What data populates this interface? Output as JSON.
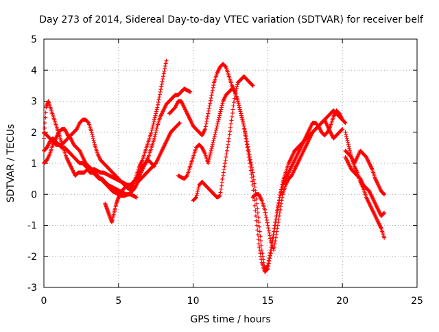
{
  "chart_data": {
    "type": "scatter",
    "title": "Day 273 of 2014, Sidereal Day-to-day VTEC variation (SDTVAR) for receiver belf",
    "xlabel": "GPS time / hours",
    "ylabel": "SDTVAR / TECUs",
    "xlim": [
      0,
      25
    ],
    "ylim": [
      -3,
      5
    ],
    "x_ticks": [
      "0",
      "5",
      "10",
      "15",
      "20",
      "25"
    ],
    "y_ticks": [
      "-3",
      "-2",
      "-1",
      "0",
      "1",
      "2",
      "3",
      "4",
      "5"
    ],
    "grid": true,
    "marker": "+",
    "color": "#ff0000",
    "series": [
      {
        "x": [
          0.0,
          0.15,
          0.3,
          0.5,
          0.7,
          0.9,
          1.1,
          1.3,
          1.5,
          1.7,
          1.9,
          2.1,
          2.3,
          2.5,
          2.7,
          2.9,
          3.1,
          3.3,
          3.5,
          3.7,
          3.9,
          4.1,
          4.3,
          4.5,
          4.7,
          4.9,
          5.1,
          5.3,
          5.5,
          5.7,
          5.9,
          6.1,
          6.3,
          6.5,
          6.7,
          6.9,
          7.1,
          7.3,
          7.5,
          7.7,
          7.9,
          8.1,
          8.3,
          8.5,
          8.7,
          8.9,
          9.1
        ],
        "y": [
          1.8,
          2.8,
          3.0,
          2.7,
          2.4,
          2.1,
          1.8,
          1.5,
          1.2,
          1.0,
          0.8,
          0.6,
          0.7,
          0.7,
          0.7,
          0.8,
          0.7,
          0.7,
          0.6,
          0.5,
          0.5,
          0.4,
          0.3,
          0.25,
          0.2,
          0.15,
          0.1,
          0.05,
          0.0,
          0.0,
          0.1,
          0.2,
          0.4,
          0.5,
          0.6,
          0.7,
          0.8,
          0.9,
          1.0,
          1.2,
          1.4,
          1.6,
          1.8,
          2.0,
          2.1,
          2.2,
          2.3
        ]
      },
      {
        "x": [
          0.0,
          0.2,
          0.4,
          0.6,
          0.8,
          1.0,
          1.2,
          1.4,
          1.6,
          1.8,
          2.0,
          2.2,
          2.4,
          2.6,
          2.8,
          3.0,
          3.2,
          3.4,
          3.6,
          3.8,
          4.0,
          4.2,
          4.4,
          4.6,
          4.8,
          5.0,
          5.2,
          5.4,
          5.6,
          5.8,
          6.0,
          6.2
        ],
        "y": [
          1.0,
          1.1,
          1.3,
          1.6,
          1.8,
          2.0,
          2.1,
          2.1,
          1.9,
          1.8,
          1.6,
          1.5,
          1.4,
          1.2,
          1.0,
          0.9,
          0.8,
          0.7,
          0.6,
          0.5,
          0.4,
          0.3,
          0.2,
          0.1,
          0.05,
          0.0,
          -0.05,
          -0.05,
          0.0,
          0.0,
          -0.05,
          -0.1
        ]
      },
      {
        "x": [
          0.0,
          0.2,
          0.4,
          0.6,
          0.8,
          1.0,
          1.2,
          1.4,
          1.6,
          1.8,
          2.0,
          2.2,
          2.4,
          2.6,
          2.8,
          3.0,
          3.2,
          3.4,
          3.6,
          3.8,
          4.0,
          4.2,
          4.4,
          4.6,
          4.8,
          5.0,
          5.2,
          5.4,
          5.6,
          5.8,
          6.0,
          6.2,
          6.4,
          6.6,
          6.8,
          7.0,
          7.2,
          7.4,
          7.6,
          7.8,
          8.0,
          8.2
        ],
        "y": [
          1.4,
          1.5,
          1.7,
          1.8,
          1.7,
          1.6,
          1.6,
          1.7,
          1.8,
          1.9,
          2.0,
          2.1,
          2.3,
          2.4,
          2.4,
          2.3,
          2.0,
          1.6,
          1.3,
          1.1,
          1.0,
          0.9,
          0.8,
          0.7,
          0.6,
          0.5,
          0.4,
          0.3,
          0.2,
          0.15,
          0.3,
          0.6,
          0.9,
          1.1,
          1.4,
          1.7,
          2.0,
          2.4,
          2.8,
          3.3,
          3.8,
          4.3
        ]
      },
      {
        "x": [
          0.0,
          0.2,
          0.4,
          0.6,
          0.8,
          1.0,
          1.2,
          1.4,
          1.6,
          1.8,
          2.0,
          2.2,
          2.4,
          2.6,
          2.8,
          3.0,
          3.2,
          3.4,
          3.6,
          3.8,
          4.0,
          4.2,
          4.4,
          4.6,
          4.8,
          5.0,
          5.2,
          5.4,
          5.6,
          5.8,
          6.0,
          6.2,
          6.4,
          6.6,
          6.8,
          7.0,
          7.2,
          7.4,
          7.6,
          7.8,
          8.0,
          8.2,
          8.4,
          8.6,
          8.8,
          9.0,
          9.2,
          9.4,
          9.6,
          9.8
        ],
        "y": [
          2.0,
          1.9,
          1.8,
          1.7,
          1.6,
          1.6,
          1.5,
          1.5,
          1.4,
          1.3,
          1.2,
          1.1,
          1.0,
          1.0,
          0.9,
          0.9,
          0.8,
          0.8,
          0.75,
          0.7,
          0.7,
          0.65,
          0.6,
          0.55,
          0.5,
          0.45,
          0.4,
          0.35,
          0.3,
          0.3,
          0.4,
          0.5,
          0.6,
          0.8,
          1.0,
          1.2,
          1.5,
          1.8,
          2.2,
          2.5,
          2.7,
          2.9,
          3.0,
          3.1,
          3.2,
          3.2,
          3.3,
          3.4,
          3.35,
          3.3
        ]
      },
      {
        "x": [
          4.1,
          4.25,
          4.4,
          4.55,
          4.7,
          4.85,
          5.0,
          5.2,
          5.4,
          5.6,
          5.8,
          6.0,
          6.2,
          6.4,
          6.6,
          6.8,
          7.0,
          7.2,
          7.4
        ],
        "y": [
          -0.3,
          -0.5,
          -0.7,
          -0.9,
          -0.6,
          -0.3,
          -0.1,
          0.1,
          0.2,
          0.3,
          0.3,
          0.4,
          0.5,
          0.7,
          0.9,
          1.0,
          1.1,
          1.0,
          0.9
        ]
      },
      {
        "x": [
          8.4,
          8.6,
          8.8,
          9.0,
          9.2,
          9.4,
          9.6,
          9.8,
          10.0,
          10.2,
          10.4,
          10.6,
          10.8,
          11.0,
          11.2,
          11.4,
          11.6,
          11.8,
          12.0,
          12.2,
          12.4,
          12.6,
          12.8,
          13.0,
          13.2,
          13.4,
          13.6,
          13.8,
          14.0,
          14.2,
          14.4,
          14.6,
          14.8,
          15.0,
          15.2,
          15.4,
          15.6,
          15.8,
          16.0,
          16.2,
          16.4,
          16.6,
          16.8,
          17.0,
          17.2,
          17.4,
          17.6,
          17.8,
          18.0,
          18.2,
          18.4,
          18.6,
          18.8,
          19.0,
          19.2,
          19.4,
          19.6,
          19.8,
          20.0,
          20.2
        ],
        "y": [
          2.6,
          2.7,
          2.8,
          3.0,
          3.0,
          2.8,
          2.6,
          2.4,
          2.2,
          2.1,
          2.0,
          1.9,
          2.1,
          2.6,
          3.1,
          3.6,
          3.9,
          4.1,
          4.2,
          4.1,
          3.8,
          3.5,
          3.3,
          3.0,
          2.6,
          2.2,
          1.7,
          1.2,
          0.7,
          0.0,
          -0.9,
          -1.8,
          -2.4,
          -2.3,
          -1.8,
          -1.2,
          -0.6,
          -0.1,
          0.4,
          0.7,
          1.0,
          1.2,
          1.4,
          1.5,
          1.6,
          1.7,
          1.8,
          1.9,
          2.0,
          2.1,
          2.2,
          2.3,
          2.4,
          2.5,
          2.6,
          2.7,
          2.6,
          2.5,
          2.4,
          2.3
        ]
      },
      {
        "x": [
          9.0,
          9.2,
          9.4,
          9.6,
          9.8,
          10.0,
          10.2,
          10.4,
          10.6,
          10.8,
          11.0,
          11.2,
          11.4,
          11.6,
          11.8,
          12.0,
          12.2,
          12.4,
          12.6,
          12.8,
          13.0,
          13.2,
          13.4,
          13.6,
          13.8,
          14.0,
          14.2,
          14.4,
          14.6,
          14.8,
          15.0,
          15.2,
          15.4,
          15.6,
          15.8,
          16.0,
          16.2,
          16.4,
          16.6,
          16.8,
          17.0,
          17.2,
          17.4,
          17.6,
          17.8,
          18.0,
          18.2,
          18.4,
          18.6,
          18.8,
          19.0,
          19.2,
          19.4,
          19.6,
          19.8,
          20.0
        ],
        "y": [
          0.6,
          0.55,
          0.5,
          0.6,
          0.9,
          1.2,
          1.5,
          1.6,
          1.5,
          1.3,
          1.0,
          1.4,
          1.8,
          2.2,
          2.6,
          3.0,
          3.2,
          3.3,
          3.4,
          3.3,
          3.0,
          2.6,
          2.2,
          1.6,
          1.0,
          0.3,
          -0.7,
          -1.6,
          -2.2,
          -2.5,
          -2.4,
          -1.9,
          -1.3,
          -0.7,
          -0.1,
          0.3,
          0.5,
          0.7,
          0.9,
          1.1,
          1.3,
          1.5,
          1.7,
          1.9,
          2.1,
          2.3,
          2.3,
          2.2,
          2.0,
          1.9,
          2.0,
          2.2,
          2.5,
          2.7,
          2.6,
          2.4
        ]
      },
      {
        "x": [
          10.0,
          10.2,
          10.4,
          10.6,
          10.8,
          11.0,
          11.2,
          11.4,
          11.6,
          11.8,
          12.0,
          12.2,
          12.4,
          12.6,
          12.8,
          13.0,
          13.2,
          13.4,
          13.6,
          13.8,
          14.0
        ],
        "y": [
          -0.2,
          -0.1,
          0.3,
          0.4,
          0.3,
          0.2,
          0.1,
          0.0,
          -0.1,
          -0.05,
          0.6,
          1.2,
          1.8,
          2.5,
          3.2,
          3.6,
          3.7,
          3.8,
          3.7,
          3.6,
          3.5
        ]
      },
      {
        "x": [
          14.0,
          14.2,
          14.4,
          14.6,
          14.8,
          15.0,
          15.2,
          15.4,
          15.6,
          15.8,
          16.0,
          16.2,
          16.4,
          16.6,
          16.8,
          17.0,
          17.2,
          17.4,
          17.6,
          17.8,
          18.0,
          18.2,
          18.4,
          18.6,
          18.8,
          19.0,
          19.2,
          19.4,
          19.6,
          19.8,
          20.0
        ],
        "y": [
          -0.1,
          0.0,
          0.0,
          -0.2,
          -0.5,
          -1.0,
          -1.5,
          -1.8,
          -1.2,
          -0.6,
          0.0,
          0.3,
          0.5,
          0.6,
          0.8,
          1.0,
          1.2,
          1.4,
          1.6,
          1.8,
          2.0,
          2.1,
          2.2,
          2.3,
          2.4,
          2.2,
          2.0,
          1.8,
          1.9,
          2.0,
          2.1
        ]
      },
      {
        "x": [
          20.2,
          20.4,
          20.6,
          20.8,
          21.0,
          21.2,
          21.4,
          21.6,
          21.8,
          22.0,
          22.2,
          22.4,
          22.6,
          22.8
        ],
        "y": [
          2.0,
          1.6,
          1.2,
          0.9,
          0.7,
          0.4,
          0.2,
          -0.1,
          -0.3,
          -0.5,
          -0.7,
          -0.9,
          -1.1,
          -1.4
        ]
      },
      {
        "x": [
          20.2,
          20.4,
          20.6,
          20.8,
          21.0,
          21.2,
          21.4,
          21.6,
          21.8,
          22.0,
          22.2,
          22.4,
          22.6,
          22.8
        ],
        "y": [
          1.2,
          1.0,
          0.8,
          0.7,
          0.6,
          0.5,
          0.3,
          0.2,
          0.1,
          -0.1,
          -0.3,
          -0.5,
          -0.7,
          -0.6
        ]
      },
      {
        "x": [
          20.2,
          20.4,
          20.6,
          20.8,
          21.0,
          21.2,
          21.4,
          21.6,
          21.8,
          22.0,
          22.2,
          22.4,
          22.6,
          22.8
        ],
        "y": [
          1.4,
          1.3,
          1.2,
          1.0,
          1.2,
          1.4,
          1.3,
          1.2,
          1.0,
          0.8,
          0.5,
          0.3,
          0.1,
          0.0
        ]
      }
    ]
  }
}
